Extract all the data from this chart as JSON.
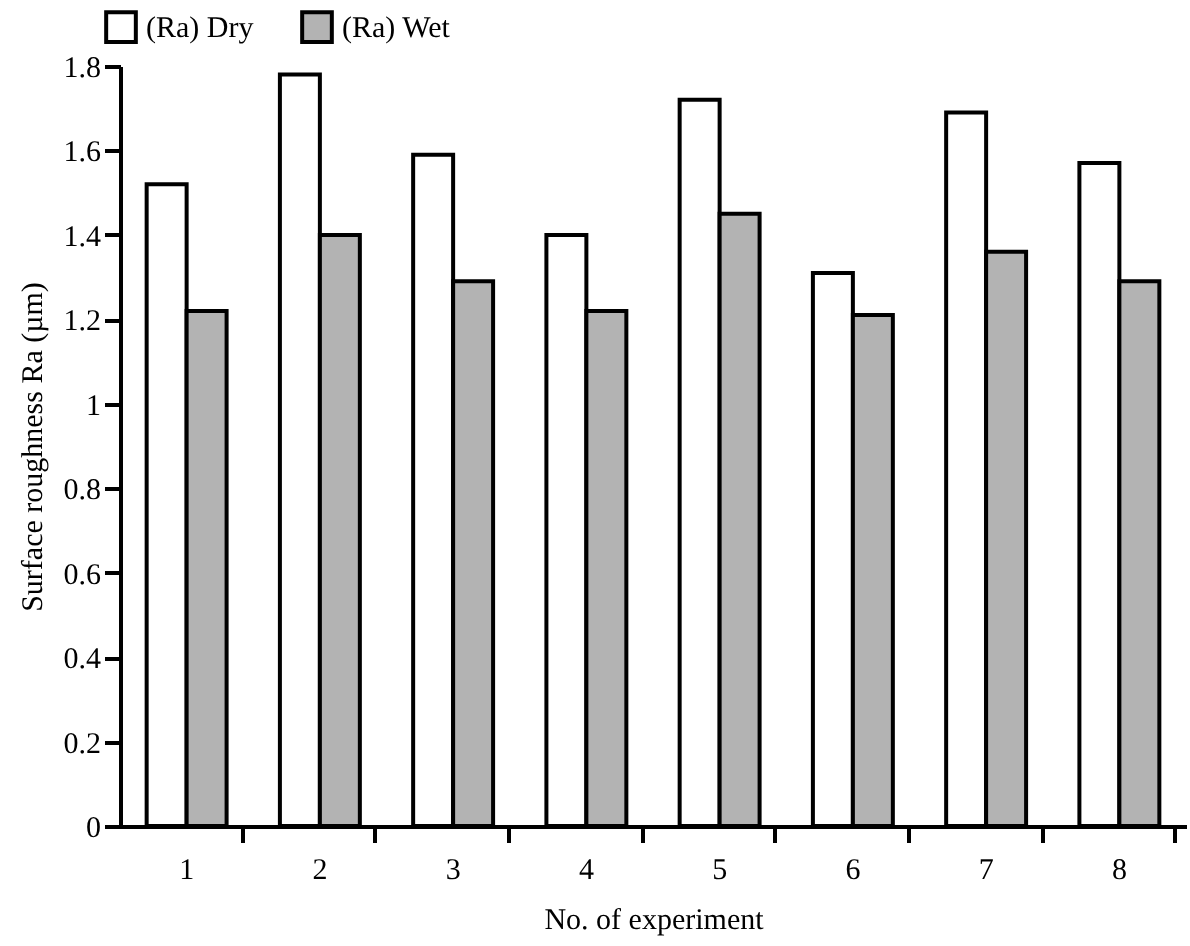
{
  "chart_data": {
    "type": "bar",
    "xlabel": "No. of experiment",
    "ylabel": "Surface roughness Ra (µm)",
    "categories": [
      "1",
      "2",
      "3",
      "4",
      "5",
      "6",
      "7",
      "8"
    ],
    "series": [
      {
        "name": "(Ra) Dry",
        "color": "#ffffff",
        "values": [
          1.52,
          1.78,
          1.59,
          1.4,
          1.72,
          1.31,
          1.69,
          1.57
        ]
      },
      {
        "name": "(Ra) Wet",
        "color": "#b3b3b3",
        "values": [
          1.22,
          1.4,
          1.29,
          1.22,
          1.45,
          1.21,
          1.36,
          1.29
        ]
      }
    ],
    "ylim": [
      0,
      1.8
    ],
    "yticks": [
      0,
      0.2,
      0.4,
      0.6,
      0.8,
      1,
      1.2,
      1.4,
      1.6,
      1.8
    ],
    "grid": false,
    "legend": "top left"
  }
}
